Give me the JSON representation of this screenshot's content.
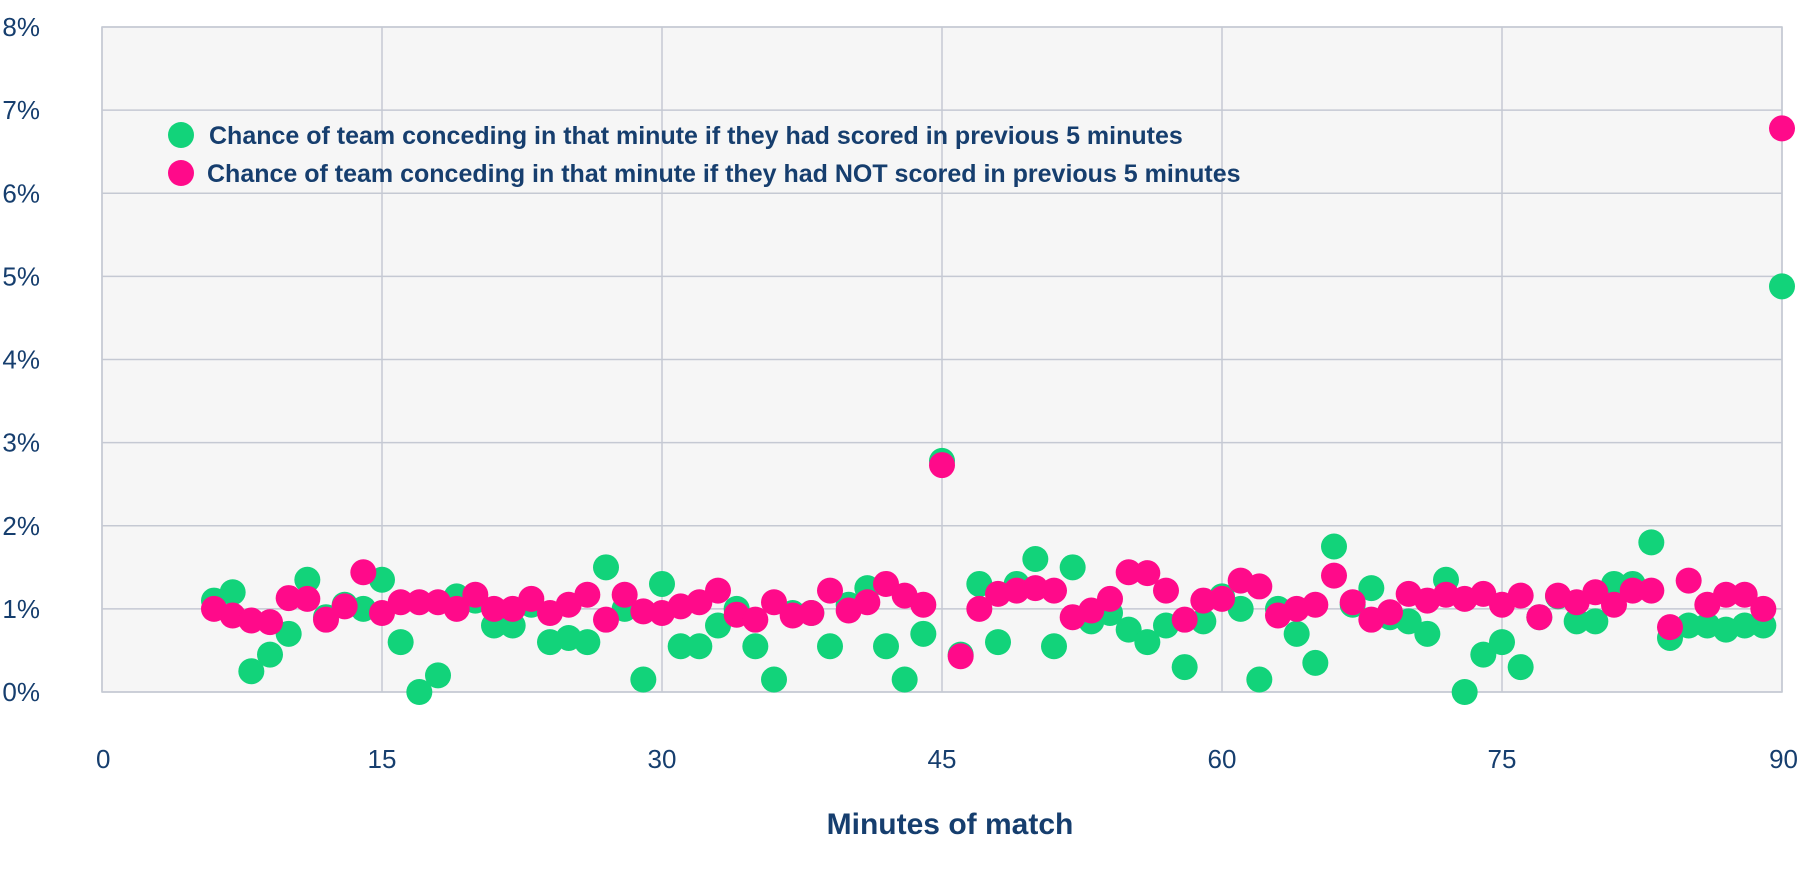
{
  "chart_data": {
    "type": "scatter",
    "title": "",
    "xlabel": "Minutes of match",
    "ylabel": "",
    "xlim": [
      0,
      90
    ],
    "ylim": [
      0,
      8
    ],
    "x_ticks": [
      0,
      15,
      30,
      45,
      60,
      75,
      90
    ],
    "y_ticks": [
      0,
      1,
      2,
      3,
      4,
      5,
      6,
      7,
      8
    ],
    "y_tick_labels": [
      "0%",
      "1%",
      "2%",
      "3%",
      "4%",
      "5%",
      "6%",
      "7%",
      "8%"
    ],
    "grid": true,
    "legend_position": "top-left",
    "series": [
      {
        "name": "Chance of team conceding in that minute if they had scored in previous 5 minutes",
        "color": "#12d37a",
        "x": [
          6,
          7,
          8,
          9,
          10,
          11,
          12,
          13,
          14,
          15,
          16,
          17,
          18,
          19,
          20,
          21,
          22,
          23,
          24,
          25,
          26,
          27,
          28,
          29,
          30,
          31,
          32,
          33,
          34,
          35,
          36,
          37,
          38,
          39,
          40,
          41,
          42,
          43,
          44,
          45,
          46,
          47,
          48,
          49,
          50,
          51,
          52,
          53,
          54,
          55,
          56,
          57,
          58,
          59,
          60,
          61,
          62,
          63,
          64,
          65,
          66,
          67,
          68,
          69,
          70,
          71,
          72,
          73,
          74,
          75,
          76,
          77,
          78,
          79,
          80,
          81,
          82,
          83,
          84,
          85,
          86,
          87,
          88,
          89,
          90
        ],
        "values": [
          1.1,
          1.2,
          0.25,
          0.45,
          0.7,
          1.35,
          0.9,
          1.05,
          1.0,
          1.35,
          0.6,
          0.0,
          0.2,
          1.15,
          1.1,
          0.8,
          0.8,
          1.05,
          0.6,
          0.65,
          0.6,
          1.5,
          1.0,
          0.15,
          1.3,
          0.55,
          0.55,
          0.8,
          1.0,
          0.55,
          0.15,
          0.95,
          0.95,
          0.55,
          1.05,
          1.25,
          0.55,
          0.15,
          0.7,
          2.78,
          0.45,
          1.3,
          0.6,
          1.3,
          1.6,
          0.55,
          1.5,
          0.85,
          0.95,
          0.75,
          0.6,
          0.8,
          0.3,
          0.85,
          1.15,
          1.0,
          0.15,
          1.0,
          0.7,
          0.35,
          1.75,
          1.05,
          1.25,
          0.9,
          0.85,
          0.7,
          1.35,
          0.0,
          0.45,
          0.6,
          0.3,
          0.9,
          1.15,
          0.85,
          0.85,
          1.3,
          1.3,
          1.8,
          0.65,
          0.8,
          0.8,
          0.75,
          0.8,
          0.8,
          4.88
        ]
      },
      {
        "name": "Chance of team conceding in that minute if they had NOT scored in previous 5 minutes",
        "color": "#ff0a8a",
        "x": [
          6,
          7,
          8,
          9,
          10,
          11,
          12,
          13,
          14,
          15,
          16,
          17,
          18,
          19,
          20,
          21,
          22,
          23,
          24,
          25,
          26,
          27,
          28,
          29,
          30,
          31,
          32,
          33,
          34,
          35,
          36,
          37,
          38,
          39,
          40,
          41,
          42,
          43,
          44,
          45,
          46,
          47,
          48,
          49,
          50,
          51,
          52,
          53,
          54,
          55,
          56,
          57,
          58,
          59,
          60,
          61,
          62,
          63,
          64,
          65,
          66,
          67,
          68,
          69,
          70,
          71,
          72,
          73,
          74,
          75,
          76,
          77,
          78,
          79,
          80,
          81,
          82,
          83,
          84,
          85,
          86,
          87,
          88,
          89,
          90
        ],
        "values": [
          1.0,
          0.92,
          0.86,
          0.84,
          1.13,
          1.12,
          0.87,
          1.03,
          1.44,
          0.95,
          1.08,
          1.08,
          1.08,
          1.0,
          1.17,
          1.0,
          1.0,
          1.12,
          0.95,
          1.05,
          1.17,
          0.87,
          1.17,
          0.97,
          0.95,
          1.03,
          1.08,
          1.22,
          0.93,
          0.87,
          1.08,
          0.92,
          0.95,
          1.22,
          0.98,
          1.08,
          1.3,
          1.16,
          1.05,
          2.73,
          0.43,
          1.0,
          1.18,
          1.22,
          1.25,
          1.22,
          0.9,
          0.98,
          1.12,
          1.44,
          1.43,
          1.22,
          0.87,
          1.1,
          1.12,
          1.34,
          1.27,
          0.92,
          1.0,
          1.05,
          1.4,
          1.08,
          0.87,
          0.96,
          1.18,
          1.1,
          1.17,
          1.12,
          1.18,
          1.05,
          1.16,
          0.9,
          1.16,
          1.08,
          1.2,
          1.05,
          1.22,
          1.22,
          0.78,
          1.34,
          1.05,
          1.17,
          1.17,
          1.0,
          6.78
        ]
      }
    ]
  }
}
